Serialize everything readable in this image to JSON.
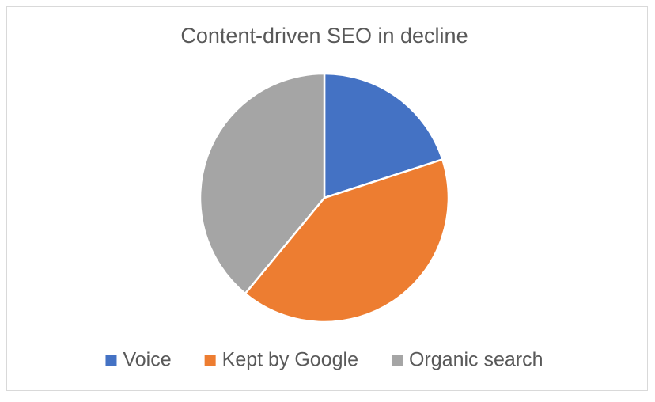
{
  "chart_data": {
    "type": "pie",
    "title": "Content-driven SEO in decline",
    "categories": [
      "Voice",
      "Kept by Google",
      "Organic search"
    ],
    "values": [
      20,
      41,
      39
    ],
    "colors": [
      "#4472c4",
      "#ed7d31",
      "#a5a5a5"
    ],
    "legend": "bottom"
  }
}
